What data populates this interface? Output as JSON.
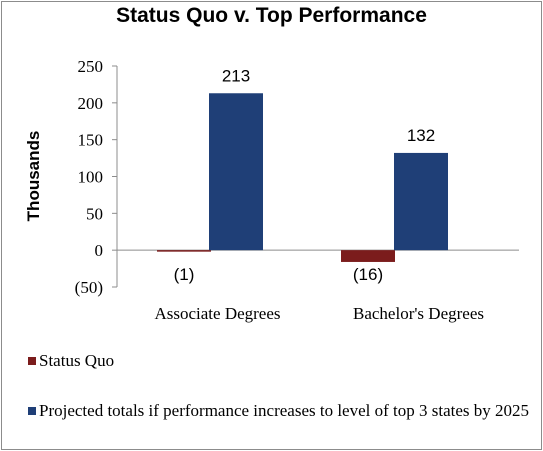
{
  "chart_data": {
    "type": "bar",
    "title": "Status Quo v. Top Performance",
    "ylabel": "Thousands",
    "ylim": [
      -50,
      250
    ],
    "yticks": [
      250,
      200,
      150,
      100,
      50,
      0,
      -50
    ],
    "ytick_labels": [
      "250",
      "200",
      "150",
      "100",
      "50",
      "0",
      "(50)"
    ],
    "categories": [
      "Associate Degrees",
      "Bachelor's Degrees"
    ],
    "series": [
      {
        "name": "Status Quo",
        "values": [
          -1,
          -16
        ],
        "labels": [
          "(1)",
          "(16)"
        ],
        "color": "#7b1c1c"
      },
      {
        "name": "Projected totals if performance increases to level of top 3 states by 2025",
        "values": [
          213,
          132
        ],
        "labels": [
          "213",
          "132"
        ],
        "color": "#1f3f77"
      }
    ],
    "grid": false,
    "legend_position": "bottom"
  }
}
